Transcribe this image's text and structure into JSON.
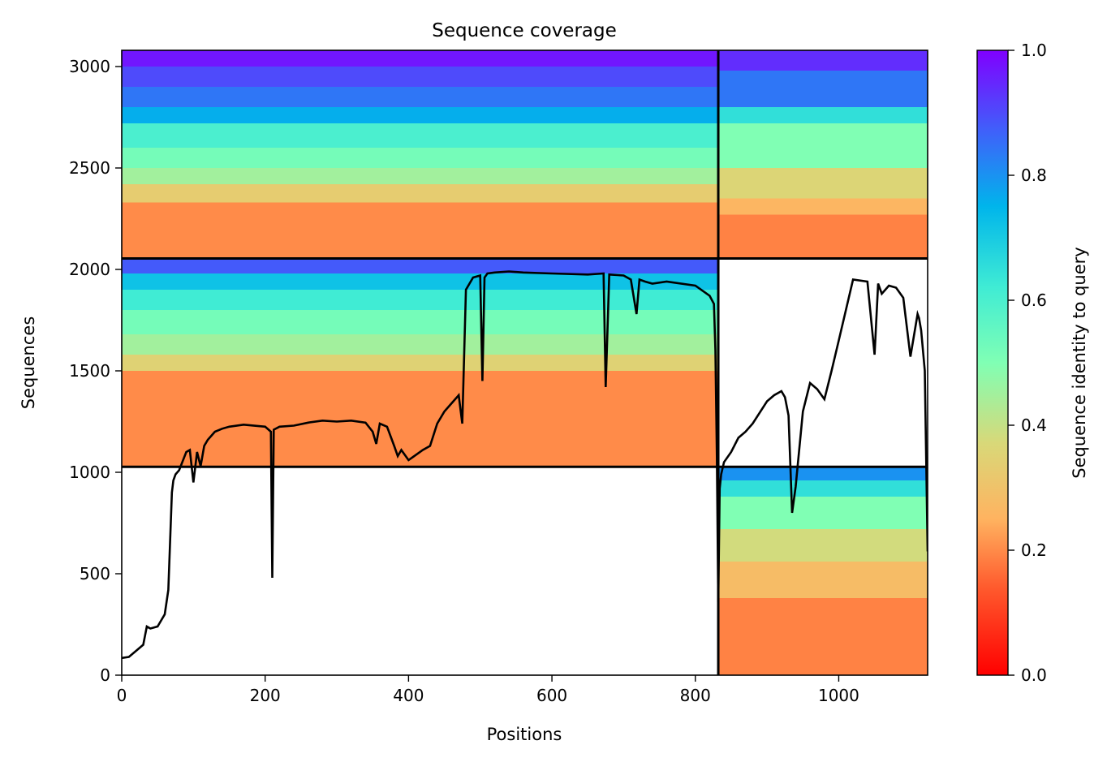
{
  "chart_data": {
    "type": "heatmap",
    "title": "Sequence coverage",
    "xlabel": "Positions",
    "ylabel": "Sequences",
    "colorbar_label": "Sequence identity to query",
    "colormap": "rainbow_r",
    "xlim": [
      0,
      1124
    ],
    "ylim": [
      0,
      3080
    ],
    "clim": [
      0.0,
      1.0
    ],
    "x_ticks": [
      0,
      200,
      400,
      600,
      800,
      1000
    ],
    "y_ticks": [
      0,
      500,
      1000,
      1500,
      2000,
      2500,
      3000
    ],
    "colorbar_ticks": [
      "0.0",
      "0.2",
      "0.4",
      "0.6",
      "0.8",
      "1.0"
    ],
    "chain_boundaries": {
      "x": 832,
      "y": [
        1027,
        2054
      ]
    },
    "msa_blocks": [
      {
        "x": [
          0,
          832
        ],
        "y": [
          2054,
          3080
        ],
        "bands": [
          [
            3000,
            3080,
            0.97
          ],
          [
            2900,
            3000,
            0.9
          ],
          [
            2800,
            2900,
            0.84
          ],
          [
            2720,
            2800,
            0.76
          ],
          [
            2600,
            2720,
            0.6
          ],
          [
            2500,
            2600,
            0.52
          ],
          [
            2420,
            2500,
            0.45
          ],
          [
            2330,
            2420,
            0.33
          ],
          [
            2054,
            2330,
            0.2
          ]
        ]
      },
      {
        "x": [
          0,
          832
        ],
        "y": [
          1027,
          2054
        ],
        "bands": [
          [
            1980,
            2054,
            0.88
          ],
          [
            1900,
            1980,
            0.72
          ],
          [
            1800,
            1900,
            0.62
          ],
          [
            1680,
            1800,
            0.52
          ],
          [
            1580,
            1680,
            0.45
          ],
          [
            1500,
            1580,
            0.35
          ],
          [
            1027,
            1500,
            0.2
          ]
        ]
      },
      {
        "x": [
          832,
          1124
        ],
        "y": [
          2054,
          3080
        ],
        "bands": [
          [
            2980,
            3080,
            0.94
          ],
          [
            2800,
            2980,
            0.84
          ],
          [
            2720,
            2800,
            0.65
          ],
          [
            2500,
            2720,
            0.5
          ],
          [
            2350,
            2500,
            0.36
          ],
          [
            2270,
            2350,
            0.26
          ],
          [
            2054,
            2270,
            0.19
          ]
        ]
      },
      {
        "x": [
          832,
          1124
        ],
        "y": [
          0,
          1027
        ],
        "bands": [
          [
            960,
            1027,
            0.8
          ],
          [
            880,
            960,
            0.65
          ],
          [
            720,
            880,
            0.5
          ],
          [
            560,
            720,
            0.38
          ],
          [
            380,
            560,
            0.28
          ],
          [
            0,
            380,
            0.19
          ]
        ]
      }
    ],
    "series": [
      {
        "x": [
          0,
          10,
          20,
          30,
          35,
          40,
          50,
          55,
          60,
          65,
          70,
          72,
          75,
          80,
          90,
          95,
          100,
          105,
          110,
          115,
          120,
          130,
          140,
          150,
          170,
          200,
          208,
          210,
          212,
          220,
          240,
          260,
          280,
          300,
          320,
          340,
          350,
          355,
          360,
          370,
          380,
          385,
          390,
          400,
          420,
          430,
          440,
          450,
          460,
          470,
          475,
          480,
          490,
          500,
          503,
          506,
          510,
          520,
          540,
          560,
          600,
          650,
          672,
          675,
          680,
          700,
          710,
          718,
          722,
          730,
          740,
          760,
          800,
          820,
          826,
          828,
          830,
          832,
          834,
          836,
          840,
          850,
          860,
          870,
          880,
          900,
          910,
          920,
          925,
          930,
          935,
          940,
          950,
          960,
          970,
          980,
          990,
          1000,
          1020,
          1040,
          1050,
          1055,
          1060,
          1070,
          1080,
          1090,
          1100,
          1110,
          1112,
          1115,
          1120,
          1124
        ],
        "y": [
          85,
          90,
          120,
          150,
          240,
          230,
          240,
          270,
          300,
          420,
          900,
          960,
          990,
          1010,
          1100,
          1110,
          950,
          1100,
          1030,
          1130,
          1160,
          1200,
          1215,
          1225,
          1235,
          1225,
          1200,
          480,
          1210,
          1225,
          1230,
          1245,
          1255,
          1250,
          1255,
          1245,
          1200,
          1140,
          1240,
          1225,
          1130,
          1080,
          1110,
          1060,
          1110,
          1130,
          1240,
          1300,
          1340,
          1380,
          1240,
          1900,
          1960,
          1970,
          1450,
          1960,
          1980,
          1985,
          1990,
          1985,
          1980,
          1975,
          1980,
          1420,
          1975,
          1970,
          1950,
          1780,
          1950,
          1940,
          1930,
          1940,
          1920,
          1870,
          1830,
          1600,
          1080,
          360,
          920,
          990,
          1050,
          1100,
          1170,
          1200,
          1240,
          1350,
          1380,
          1400,
          1370,
          1280,
          800,
          930,
          1300,
          1440,
          1410,
          1360,
          1500,
          1650,
          1950,
          1940,
          1580,
          1930,
          1880,
          1920,
          1910,
          1860,
          1570,
          1780,
          1760,
          1700,
          1500,
          610
        ]
      }
    ]
  }
}
